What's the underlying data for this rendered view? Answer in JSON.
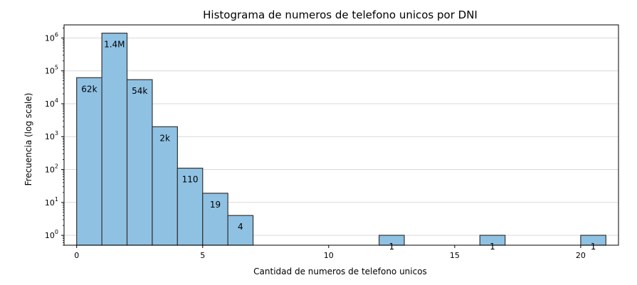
{
  "chart_data": {
    "type": "bar",
    "title": "Histograma de numeros de telefono unicos  por DNI",
    "xlabel": "Cantidad de numeros de telefono unicos",
    "ylabel": "Frecuencia (log scale)",
    "yscale": "log",
    "ylim": [
      0.5,
      2500000
    ],
    "xlim": [
      -0.5,
      21.5
    ],
    "x_ticks": [
      0,
      5,
      10,
      15,
      20
    ],
    "y_ticks": [
      1,
      10,
      100,
      1000,
      10000,
      100000,
      1000000
    ],
    "y_tick_labels": [
      "10^0",
      "10^1",
      "10^2",
      "10^3",
      "10^4",
      "10^5",
      "10^6"
    ],
    "grid": "horizontal",
    "bin_width": 1,
    "bar_color": "#8fc1e3",
    "bar_edge_color": "#333333",
    "bins": [
      {
        "x_start": 0,
        "value": 62000,
        "label": "62k"
      },
      {
        "x_start": 1,
        "value": 1400000,
        "label": "1.4M"
      },
      {
        "x_start": 2,
        "value": 54000,
        "label": "54k"
      },
      {
        "x_start": 3,
        "value": 2000,
        "label": "2k"
      },
      {
        "x_start": 4,
        "value": 110,
        "label": "110"
      },
      {
        "x_start": 5,
        "value": 19,
        "label": "19"
      },
      {
        "x_start": 6,
        "value": 4,
        "label": "4"
      },
      {
        "x_start": 12,
        "value": 1,
        "label": "1"
      },
      {
        "x_start": 16,
        "value": 1,
        "label": "1"
      },
      {
        "x_start": 20,
        "value": 1,
        "label": "1"
      }
    ]
  }
}
